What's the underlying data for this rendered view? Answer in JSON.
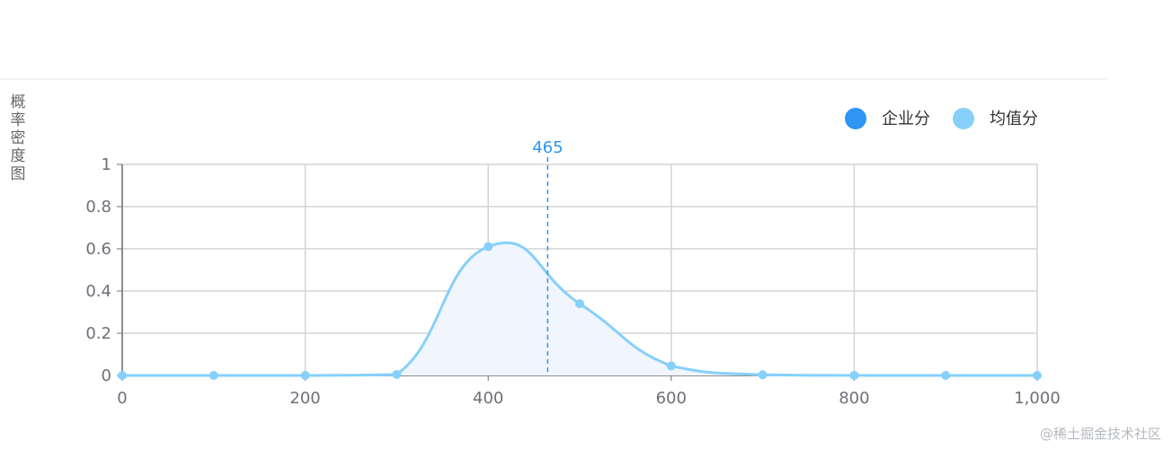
{
  "chart_data": {
    "type": "area",
    "ylabel": "概率密度图",
    "x": [
      0,
      100,
      200,
      300,
      400,
      500,
      600,
      700,
      800,
      900,
      1000
    ],
    "series": [
      {
        "name": "均值分",
        "values": [
          0,
          0,
          0,
          0.005,
          0.61,
          0.34,
          0.045,
          0.003,
          0,
          0,
          0
        ],
        "color": "#86d0fb",
        "smooth": true,
        "area_color": "#f1f5fd"
      }
    ],
    "markLine": {
      "name": "企业分",
      "x": 465,
      "label": "465",
      "color": "#2d96f4",
      "style": "dashed"
    },
    "legend": {
      "placement": "top-right",
      "items": [
        {
          "label": "企业分",
          "color": "#2d96f4"
        },
        {
          "label": "均值分",
          "color": "#86d0fb"
        }
      ]
    },
    "xlim": [
      0,
      1000
    ],
    "ylim": [
      0,
      1
    ],
    "xticks": [
      0,
      200,
      400,
      600,
      800,
      1000
    ],
    "xtick_labels": [
      "0",
      "200",
      "400",
      "600",
      "800",
      "1,000"
    ],
    "yticks": [
      0,
      0.2,
      0.4,
      0.6,
      0.8,
      1
    ],
    "ytick_labels": [
      "0",
      "0.2",
      "0.4",
      "0.6",
      "0.8",
      "1"
    ],
    "grid": true
  },
  "watermark": "@稀土掘金技术社区"
}
